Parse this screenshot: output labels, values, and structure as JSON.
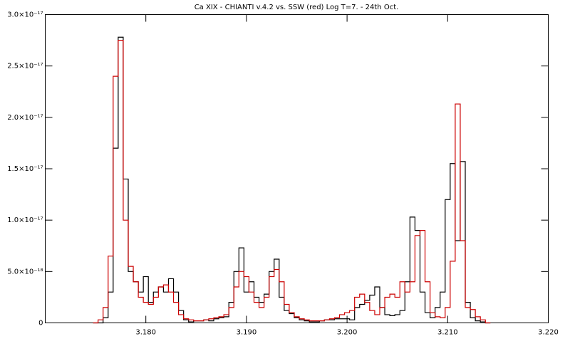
{
  "chart_data": {
    "type": "step",
    "title": "Ca XIX - CHIANTI v.4.2 vs. SSW (red) Log T=7. - 24th Oct.",
    "x": [
      3.175,
      3.1755,
      3.176,
      3.1765,
      3.177,
      3.1775,
      3.178,
      3.1785,
      3.179,
      3.1795,
      3.18,
      3.1805,
      3.181,
      3.1815,
      3.182,
      3.1825,
      3.183,
      3.1835,
      3.184,
      3.1845,
      3.185,
      3.1855,
      3.186,
      3.1865,
      3.187,
      3.1875,
      3.188,
      3.1885,
      3.189,
      3.1895,
      3.19,
      3.1905,
      3.191,
      3.1915,
      3.192,
      3.1925,
      3.193,
      3.1935,
      3.194,
      3.1945,
      3.195,
      3.1955,
      3.196,
      3.1965,
      3.197,
      3.1975,
      3.198,
      3.1985,
      3.199,
      3.1995,
      3.2,
      3.2005,
      3.201,
      3.2015,
      3.202,
      3.2025,
      3.203,
      3.2035,
      3.204,
      3.2045,
      3.205,
      3.2055,
      3.206,
      3.2065,
      3.207,
      3.2075,
      3.208,
      3.2085,
      3.209,
      3.2095,
      3.21,
      3.2105,
      3.211,
      3.2115,
      3.212,
      3.2125,
      3.213,
      3.2135,
      3.214
    ],
    "series": [
      {
        "color": "#000000",
        "values": [
          0.0,
          0.0,
          5e-19,
          3e-18,
          1.7e-17,
          2.78e-17,
          1.4e-17,
          5e-18,
          4e-18,
          3e-18,
          4.5e-18,
          2e-18,
          3e-18,
          3.5e-18,
          3e-18,
          4.3e-18,
          3e-18,
          1.2e-18,
          3e-19,
          1e-19,
          2e-19,
          2e-19,
          3e-19,
          2e-19,
          4e-19,
          5e-19,
          6e-19,
          2e-18,
          5e-18,
          7.3e-18,
          3e-18,
          4e-18,
          2.5e-18,
          2e-18,
          2.8e-18,
          5e-18,
          6.2e-18,
          2.5e-18,
          1.2e-18,
          9e-19,
          5e-19,
          3e-19,
          2e-19,
          1e-19,
          1e-19,
          2e-19,
          3e-19,
          3e-19,
          4e-19,
          4e-19,
          4e-19,
          3e-19,
          1.5e-18,
          1.8e-18,
          2.2e-18,
          2.7e-18,
          3.5e-18,
          1.5e-18,
          8e-19,
          7e-19,
          8e-19,
          1.2e-18,
          4e-18,
          1.03e-17,
          9e-18,
          3e-18,
          1e-18,
          5e-19,
          1.5e-18,
          3e-18,
          1.2e-17,
          1.55e-17,
          8e-18,
          1.57e-17,
          2e-18,
          5e-19,
          2e-19,
          1e-19,
          0.0
        ]
      },
      {
        "color": "#cc0000",
        "values": [
          0.0,
          3e-19,
          1.5e-18,
          6.5e-18,
          2.4e-17,
          2.75e-17,
          1e-17,
          5.5e-18,
          4e-18,
          2.5e-18,
          2e-18,
          1.8e-18,
          2.5e-18,
          3.5e-18,
          3.7e-18,
          3e-18,
          2e-18,
          8e-19,
          4e-19,
          3e-19,
          2e-19,
          2e-19,
          3e-19,
          4e-19,
          5e-19,
          6e-19,
          8e-19,
          1.5e-18,
          3.5e-18,
          5e-18,
          4.5e-18,
          3e-18,
          2e-18,
          1.5e-18,
          2.5e-18,
          4.5e-18,
          5.2e-18,
          4e-18,
          1.8e-18,
          1e-18,
          6e-19,
          4e-19,
          3e-19,
          2e-19,
          2e-19,
          2e-19,
          3e-19,
          4e-19,
          5e-19,
          8e-19,
          1e-18,
          1.2e-18,
          2.5e-18,
          2.8e-18,
          2e-18,
          1.2e-18,
          8e-19,
          1.5e-18,
          2.5e-18,
          2.8e-18,
          2.5e-18,
          4e-18,
          3e-18,
          4e-18,
          8.5e-18,
          9e-18,
          4e-18,
          1e-18,
          6e-19,
          5e-19,
          1.5e-18,
          6e-18,
          2.13e-17,
          8e-18,
          1.5e-18,
          1.3e-18,
          6e-19,
          3e-19,
          0.0
        ]
      }
    ],
    "xlim": [
      3.17,
      3.22
    ],
    "xticks": [
      {
        "value": 3.18,
        "label": "3.180"
      },
      {
        "value": 3.19,
        "label": "3.190"
      },
      {
        "value": 3.2,
        "label": "3.200"
      },
      {
        "value": 3.21,
        "label": "3.210"
      },
      {
        "value": 3.22,
        "label": "3.220"
      }
    ],
    "ylim": [
      0,
      3e-17
    ],
    "yticks": [
      0,
      {
        "value": 5e-18,
        "label": "5.0×10⁻¹⁸"
      },
      {
        "value": 1e-17,
        "label": "1.0×10⁻¹⁷"
      },
      {
        "value": 1.5e-17,
        "label": "1.5×10⁻¹⁷"
      },
      {
        "value": 2e-17,
        "label": "2.0×10⁻¹⁷"
      },
      {
        "value": 2.5e-17,
        "label": "2.5×10⁻¹⁷"
      },
      {
        "value": 3e-17,
        "label": "3.0×10⁻¹⁷"
      }
    ]
  }
}
